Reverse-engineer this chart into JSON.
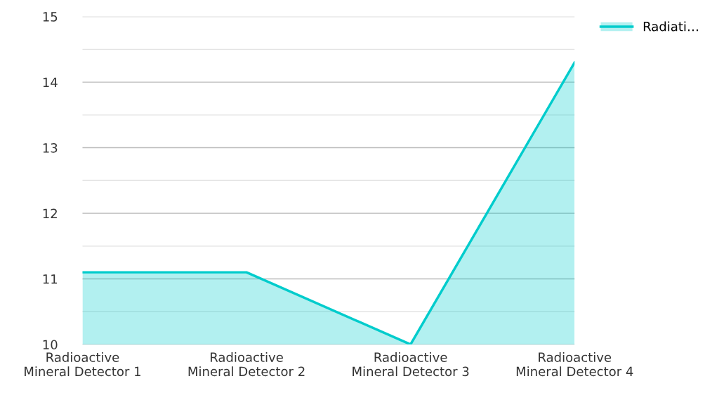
{
  "chart_data": {
    "type": "area",
    "categories": [
      "Radioactive\nMineral Detector 1",
      "Radioactive\nMineral Detector 2",
      "Radioactive\nMineral Detector 3",
      "Radioactive\nMineral Detector 4"
    ],
    "series": [
      {
        "name": "Radiati…",
        "color": "#00cccc",
        "values": [
          11.1,
          11.1,
          10.0,
          14.3
        ]
      }
    ],
    "ylim": [
      10,
      15
    ],
    "yticks": [
      10,
      {
        "value": 10.5,
        "label": null
      },
      11,
      {
        "value": 11.5,
        "label": null
      },
      12,
      {
        "value": 12.5,
        "label": null
      },
      13,
      {
        "value": 13.5,
        "label": null
      },
      14,
      {
        "value": 14.5,
        "label": null
      },
      15
    ],
    "grid": "y",
    "legend": "top right"
  }
}
